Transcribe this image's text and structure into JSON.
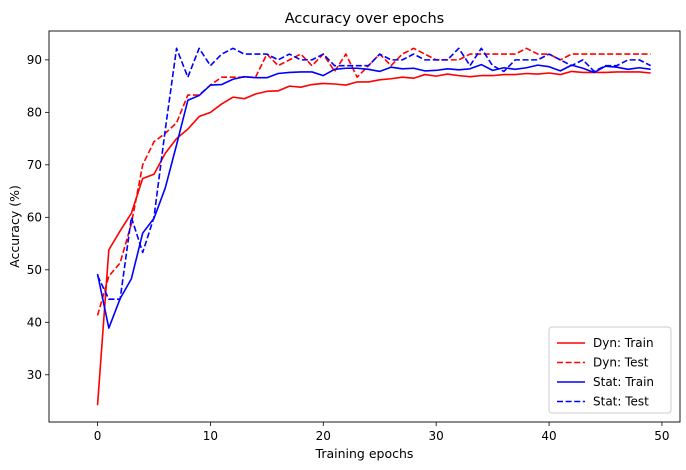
{
  "chart_data": {
    "type": "line",
    "title": "Accuracy over epochs",
    "xlabel": "Training epochs",
    "ylabel": "Accuracy (%)",
    "xlim": [
      -4.3,
      51.6
    ],
    "ylim": [
      21,
      95.5
    ],
    "xticks": [
      0,
      10,
      20,
      30,
      40,
      50
    ],
    "yticks": [
      30,
      40,
      50,
      60,
      70,
      80,
      90
    ],
    "grid": false,
    "legend_position": "lower-right",
    "x": [
      0,
      1,
      2,
      3,
      4,
      5,
      6,
      7,
      8,
      9,
      10,
      11,
      12,
      13,
      14,
      15,
      16,
      17,
      18,
      19,
      20,
      21,
      22,
      23,
      24,
      25,
      26,
      27,
      28,
      29,
      30,
      31,
      32,
      33,
      34,
      35,
      36,
      37,
      38,
      39,
      40,
      41,
      42,
      43,
      44,
      45,
      46,
      47,
      48,
      49
    ],
    "series": [
      {
        "name": "Dyn: Train",
        "color": "#ff0000",
        "dash": "solid",
        "values": [
          24.2,
          53.8,
          57.4,
          60.8,
          67.4,
          68.2,
          72.2,
          75.0,
          76.8,
          79.2,
          80.0,
          81.6,
          82.9,
          82.6,
          83.5,
          84.0,
          84.1,
          85.0,
          84.8,
          85.3,
          85.5,
          85.4,
          85.2,
          85.8,
          85.8,
          86.2,
          86.4,
          86.7,
          86.5,
          87.2,
          86.9,
          87.3,
          87.0,
          86.8,
          87.0,
          87.0,
          87.2,
          87.2,
          87.4,
          87.3,
          87.5,
          87.2,
          87.8,
          87.6,
          87.6,
          87.6,
          87.7,
          87.7,
          87.7,
          87.5
        ]
      },
      {
        "name": "Dyn: Test",
        "color": "#ff0000",
        "dash": "dashed",
        "values": [
          41.3,
          48.8,
          51.3,
          58.8,
          70.0,
          74.4,
          76.0,
          78.0,
          83.3,
          83.3,
          85.2,
          86.7,
          86.7,
          86.7,
          86.7,
          91.1,
          88.9,
          90.0,
          91.1,
          88.9,
          91.1,
          87.8,
          91.1,
          86.7,
          88.9,
          91.1,
          88.9,
          91.1,
          92.2,
          91.1,
          90.0,
          90.0,
          90.0,
          91.1,
          91.1,
          91.1,
          91.1,
          91.1,
          92.2,
          91.1,
          91.1,
          90.0,
          91.1,
          91.1,
          91.1,
          91.1,
          91.1,
          91.1,
          91.1,
          91.1
        ]
      },
      {
        "name": "Stat: Train",
        "color": "#0000ff",
        "dash": "solid",
        "values": [
          49.2,
          38.9,
          44.5,
          48.3,
          57.0,
          59.8,
          65.6,
          73.8,
          82.3,
          83.2,
          85.2,
          85.3,
          86.3,
          86.8,
          86.6,
          86.6,
          87.4,
          87.6,
          87.7,
          87.7,
          87.0,
          88.2,
          88.4,
          88.4,
          88.2,
          87.8,
          88.6,
          88.3,
          88.4,
          87.9,
          88.0,
          88.3,
          88.1,
          88.3,
          89.1,
          88.0,
          88.5,
          88.2,
          88.5,
          89.0,
          88.7,
          87.9,
          89.0,
          88.4,
          87.6,
          88.8,
          88.6,
          88.2,
          88.5,
          88.2
        ]
      },
      {
        "name": "Stat: Test",
        "color": "#0000ff",
        "dash": "dashed",
        "values": [
          48.9,
          44.4,
          44.4,
          60.0,
          53.3,
          60.0,
          76.7,
          92.2,
          86.7,
          92.2,
          88.9,
          91.1,
          92.2,
          91.1,
          91.1,
          91.1,
          90.0,
          91.1,
          90.0,
          90.0,
          91.1,
          88.9,
          88.9,
          88.9,
          88.9,
          91.1,
          90.0,
          90.0,
          91.1,
          90.0,
          90.0,
          90.0,
          92.2,
          88.9,
          92.2,
          88.9,
          87.8,
          90.0,
          90.0,
          90.0,
          91.1,
          90.0,
          88.9,
          90.0,
          87.8,
          88.9,
          88.9,
          90.0,
          90.0,
          88.9
        ]
      }
    ]
  }
}
